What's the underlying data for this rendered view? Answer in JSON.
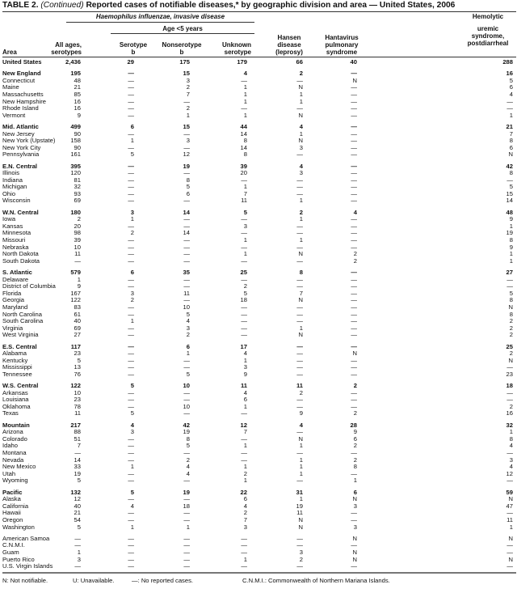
{
  "title": {
    "prefix": "TABLE 2.",
    "continued": "(Continued)",
    "text": "Reported cases of notifiable diseases,* by geographic division and area — United States, 2006"
  },
  "header": {
    "group": "Haemophilus influenzae, invasive disease",
    "age_group": "Age <5 years",
    "area": "Area",
    "all_ages": [
      "All ages,",
      "serotypes"
    ],
    "serotype_b": [
      "Serotype",
      "b"
    ],
    "nonserotype_b": [
      "Nonserotype",
      "b"
    ],
    "unknown": [
      "Unknown",
      "serotype"
    ],
    "hansen": [
      "Hansen",
      "disease",
      "(leprosy)"
    ],
    "hantavirus": [
      "Hantavirus",
      "pulmonary",
      "syndrome"
    ],
    "hus": [
      "Hemolytic",
      "uremic",
      "syndrome,",
      "postdiarrheal"
    ]
  },
  "groups": [
    [
      {
        "area": "United States",
        "bold": true,
        "v": [
          "2,436",
          "29",
          "175",
          "179",
          "66",
          "40",
          "288"
        ]
      }
    ],
    [
      {
        "area": "New England",
        "bold": true,
        "v": [
          "195",
          "—",
          "15",
          "4",
          "2",
          "—",
          "16"
        ]
      },
      {
        "area": "Connecticut",
        "v": [
          "48",
          "—",
          "3",
          "—",
          "—",
          "N",
          "5"
        ]
      },
      {
        "area": "Maine",
        "v": [
          "21",
          "—",
          "2",
          "1",
          "N",
          "—",
          "6"
        ]
      },
      {
        "area": "Massachusetts",
        "v": [
          "85",
          "—",
          "7",
          "1",
          "1",
          "—",
          "4"
        ]
      },
      {
        "area": "New Hampshire",
        "v": [
          "16",
          "—",
          "—",
          "1",
          "1",
          "—",
          "—"
        ]
      },
      {
        "area": "Rhode Island",
        "v": [
          "16",
          "—",
          "2",
          "—",
          "—",
          "—",
          "—"
        ]
      },
      {
        "area": "Vermont",
        "v": [
          "9",
          "—",
          "1",
          "1",
          "N",
          "—",
          "1"
        ]
      }
    ],
    [
      {
        "area": "Mid. Atlantic",
        "bold": true,
        "v": [
          "499",
          "6",
          "15",
          "44",
          "4",
          "—",
          "21"
        ]
      },
      {
        "area": "New Jersey",
        "v": [
          "90",
          "—",
          "—",
          "14",
          "1",
          "—",
          "7"
        ]
      },
      {
        "area": "New York (Upstate)",
        "v": [
          "158",
          "1",
          "3",
          "8",
          "N",
          "—",
          "8"
        ]
      },
      {
        "area": "New York City",
        "v": [
          "90",
          "—",
          "—",
          "14",
          "3",
          "—",
          "6"
        ]
      },
      {
        "area": "Pennsylvania",
        "v": [
          "161",
          "5",
          "12",
          "8",
          "—",
          "—",
          "N"
        ]
      }
    ],
    [
      {
        "area": "E.N. Central",
        "bold": true,
        "v": [
          "395",
          "—",
          "19",
          "39",
          "4",
          "—",
          "42"
        ]
      },
      {
        "area": "Illinois",
        "v": [
          "120",
          "—",
          "—",
          "20",
          "3",
          "—",
          "8"
        ]
      },
      {
        "area": "Indiana",
        "v": [
          "81",
          "—",
          "8",
          "—",
          "—",
          "—",
          "—"
        ]
      },
      {
        "area": "Michigan",
        "v": [
          "32",
          "—",
          "5",
          "1",
          "—",
          "—",
          "5"
        ]
      },
      {
        "area": "Ohio",
        "v": [
          "93",
          "—",
          "6",
          "7",
          "—",
          "—",
          "15"
        ]
      },
      {
        "area": "Wisconsin",
        "v": [
          "69",
          "—",
          "—",
          "11",
          "1",
          "—",
          "14"
        ]
      }
    ],
    [
      {
        "area": "W.N. Central",
        "bold": true,
        "v": [
          "180",
          "3",
          "14",
          "5",
          "2",
          "4",
          "48"
        ]
      },
      {
        "area": "Iowa",
        "v": [
          "2",
          "1",
          "—",
          "—",
          "1",
          "—",
          "9"
        ]
      },
      {
        "area": "Kansas",
        "v": [
          "20",
          "—",
          "—",
          "3",
          "—",
          "—",
          "1"
        ]
      },
      {
        "area": "Minnesota",
        "v": [
          "98",
          "2",
          "14",
          "—",
          "—",
          "—",
          "19"
        ]
      },
      {
        "area": "Missouri",
        "v": [
          "39",
          "—",
          "—",
          "1",
          "1",
          "—",
          "8"
        ]
      },
      {
        "area": "Nebraska",
        "v": [
          "10",
          "—",
          "—",
          "—",
          "—",
          "—",
          "9"
        ]
      },
      {
        "area": "North Dakota",
        "v": [
          "11",
          "—",
          "—",
          "1",
          "N",
          "2",
          "1"
        ]
      },
      {
        "area": "South Dakota",
        "v": [
          "—",
          "—",
          "—",
          "—",
          "—",
          "2",
          "1"
        ]
      }
    ],
    [
      {
        "area": "S. Atlantic",
        "bold": true,
        "v": [
          "579",
          "6",
          "35",
          "25",
          "8",
          "—",
          "27"
        ]
      },
      {
        "area": "Delaware",
        "v": [
          "1",
          "—",
          "—",
          "—",
          "—",
          "—",
          "—"
        ]
      },
      {
        "area": "District of Columbia",
        "v": [
          "9",
          "—",
          "—",
          "2",
          "—",
          "—",
          "—"
        ]
      },
      {
        "area": "Florida",
        "v": [
          "167",
          "3",
          "11",
          "5",
          "7",
          "—",
          "5"
        ]
      },
      {
        "area": "Georgia",
        "v": [
          "122",
          "2",
          "—",
          "18",
          "N",
          "—",
          "8"
        ]
      },
      {
        "area": "Maryland",
        "v": [
          "83",
          "—",
          "10",
          "—",
          "—",
          "—",
          "N"
        ]
      },
      {
        "area": "North Carolina",
        "v": [
          "61",
          "—",
          "5",
          "—",
          "—",
          "—",
          "8"
        ]
      },
      {
        "area": "South Carolina",
        "v": [
          "40",
          "1",
          "4",
          "—",
          "—",
          "—",
          "2"
        ]
      },
      {
        "area": "Virginia",
        "v": [
          "69",
          "—",
          "3",
          "—",
          "1",
          "—",
          "2"
        ]
      },
      {
        "area": "West Virginia",
        "v": [
          "27",
          "—",
          "2",
          "—",
          "N",
          "—",
          "2"
        ]
      }
    ],
    [
      {
        "area": "E.S. Central",
        "bold": true,
        "v": [
          "117",
          "—",
          "6",
          "17",
          "—",
          "—",
          "25"
        ]
      },
      {
        "area": "Alabama",
        "v": [
          "23",
          "—",
          "1",
          "4",
          "—",
          "N",
          "2"
        ]
      },
      {
        "area": "Kentucky",
        "v": [
          "5",
          "—",
          "—",
          "1",
          "—",
          "—",
          "N"
        ]
      },
      {
        "area": "Mississippi",
        "v": [
          "13",
          "—",
          "—",
          "3",
          "—",
          "—",
          "—"
        ]
      },
      {
        "area": "Tennessee",
        "v": [
          "76",
          "—",
          "5",
          "9",
          "—",
          "—",
          "23"
        ]
      }
    ],
    [
      {
        "area": "W.S. Central",
        "bold": true,
        "v": [
          "122",
          "5",
          "10",
          "11",
          "11",
          "2",
          "18"
        ]
      },
      {
        "area": "Arkansas",
        "v": [
          "10",
          "—",
          "—",
          "4",
          "2",
          "—",
          "—"
        ]
      },
      {
        "area": "Louisiana",
        "v": [
          "23",
          "—",
          "—",
          "6",
          "—",
          "—",
          "—"
        ]
      },
      {
        "area": "Oklahoma",
        "v": [
          "78",
          "—",
          "10",
          "1",
          "—",
          "—",
          "2"
        ]
      },
      {
        "area": "Texas",
        "v": [
          "11",
          "5",
          "—",
          "—",
          "9",
          "2",
          "16"
        ]
      }
    ],
    [
      {
        "area": "Mountain",
        "bold": true,
        "v": [
          "217",
          "4",
          "42",
          "12",
          "4",
          "28",
          "32"
        ]
      },
      {
        "area": "Arizona",
        "v": [
          "88",
          "3",
          "19",
          "7",
          "—",
          "9",
          "1"
        ]
      },
      {
        "area": "Colorado",
        "v": [
          "51",
          "—",
          "8",
          "—",
          "N",
          "6",
          "8"
        ]
      },
      {
        "area": "Idaho",
        "v": [
          "7",
          "—",
          "5",
          "1",
          "1",
          "2",
          "4"
        ]
      },
      {
        "area": "Montana",
        "v": [
          "—",
          "—",
          "—",
          "—",
          "—",
          "—",
          "—"
        ]
      },
      {
        "area": "Nevada",
        "v": [
          "14",
          "—",
          "2",
          "—",
          "1",
          "2",
          "3"
        ]
      },
      {
        "area": "New Mexico",
        "v": [
          "33",
          "1",
          "4",
          "1",
          "1",
          "8",
          "4"
        ]
      },
      {
        "area": "Utah",
        "v": [
          "19",
          "—",
          "4",
          "2",
          "1",
          "—",
          "12"
        ]
      },
      {
        "area": "Wyoming",
        "v": [
          "5",
          "—",
          "—",
          "1",
          "—",
          "1",
          "—"
        ]
      }
    ],
    [
      {
        "area": "Pacific",
        "bold": true,
        "v": [
          "132",
          "5",
          "19",
          "22",
          "31",
          "6",
          "59"
        ]
      },
      {
        "area": "Alaska",
        "v": [
          "12",
          "—",
          "—",
          "6",
          "1",
          "N",
          "N"
        ]
      },
      {
        "area": "California",
        "v": [
          "40",
          "4",
          "18",
          "4",
          "19",
          "3",
          "47"
        ]
      },
      {
        "area": "Hawaii",
        "v": [
          "21",
          "—",
          "—",
          "2",
          "11",
          "—",
          "—"
        ]
      },
      {
        "area": "Oregon",
        "v": [
          "54",
          "—",
          "—",
          "7",
          "N",
          "—",
          "11"
        ]
      },
      {
        "area": "Washington",
        "v": [
          "5",
          "1",
          "1",
          "3",
          "N",
          "3",
          "1"
        ]
      }
    ],
    [
      {
        "area": "American Samoa",
        "v": [
          "—",
          "—",
          "—",
          "—",
          "—",
          "N",
          "N"
        ]
      },
      {
        "area": "C.N.M.I.",
        "v": [
          "—",
          "—",
          "—",
          "—",
          "—",
          "—",
          "—"
        ]
      },
      {
        "area": "Guam",
        "v": [
          "1",
          "—",
          "—",
          "—",
          "3",
          "N",
          "—"
        ]
      },
      {
        "area": "Puerto Rico",
        "v": [
          "3",
          "—",
          "—",
          "1",
          "2",
          "N",
          "N"
        ]
      },
      {
        "area": "U.S. Virgin Islands",
        "v": [
          "—",
          "—",
          "—",
          "—",
          "—",
          "—",
          "—"
        ]
      }
    ]
  ],
  "footnotes": {
    "n": "N: Not notifiable.",
    "u": "U: Unavailable.",
    "dash": "—: No reported cases.",
    "cnmi": "C.N.M.I.: Commonwealth of Northern Mariana Islands."
  }
}
